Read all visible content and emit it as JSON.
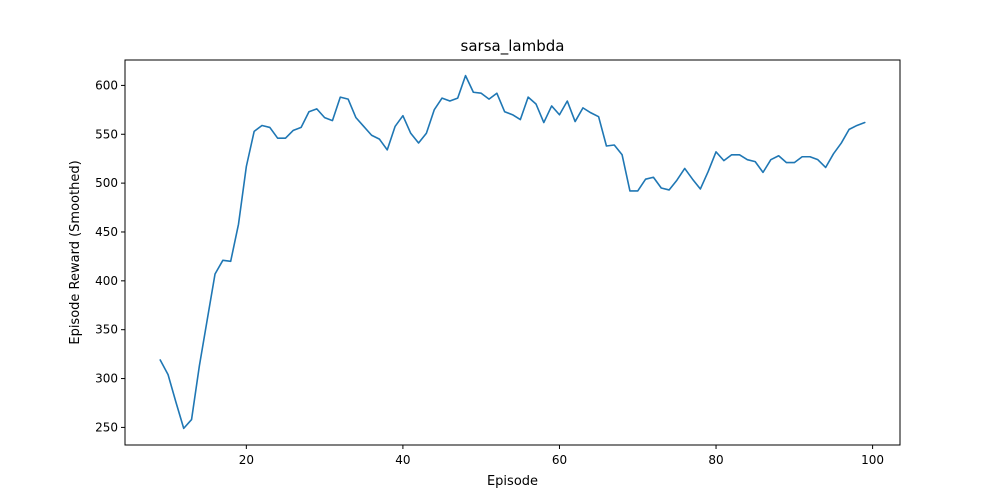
{
  "chart_data": {
    "type": "line",
    "title": "sarsa_lambda",
    "xlabel": "Episode",
    "ylabel": "Episode Reward (Smoothed)",
    "xlim": [
      4.5,
      103.5
    ],
    "ylim": [
      232,
      626
    ],
    "xticks": [
      20,
      40,
      60,
      80,
      100
    ],
    "yticks": [
      250,
      300,
      350,
      400,
      450,
      500,
      550,
      600
    ],
    "grid": false,
    "line_color": "#1f77b4",
    "series": [
      {
        "x": [
          9,
          10,
          11,
          12,
          13,
          14,
          15,
          16,
          17,
          18,
          19,
          20,
          21,
          22,
          23,
          24,
          25,
          26,
          27,
          28,
          29,
          30,
          31,
          32,
          33,
          34,
          35,
          36,
          37,
          38,
          39,
          40,
          41,
          42,
          43,
          44,
          45,
          46,
          47,
          48,
          49,
          50,
          51,
          52,
          53,
          54,
          55,
          56,
          57,
          58,
          59,
          60,
          61,
          62,
          63,
          64,
          65,
          66,
          67,
          68,
          69,
          70,
          71,
          72,
          73,
          74,
          75,
          76,
          77,
          78,
          79,
          80,
          81,
          82,
          83,
          84,
          85,
          86,
          87,
          88,
          89,
          90,
          91,
          92,
          93,
          94,
          95,
          96,
          97,
          98,
          99
        ],
        "values": [
          319,
          304,
          276,
          249,
          258,
          313,
          360,
          407,
          421,
          420,
          458,
          517,
          553,
          559,
          557,
          546,
          546,
          554,
          557,
          573,
          576,
          567,
          564,
          588,
          586,
          567,
          558,
          549,
          545,
          534,
          558,
          569,
          551,
          541,
          551,
          575,
          587,
          584,
          587,
          610,
          593,
          592,
          586,
          592,
          573,
          570,
          565,
          588,
          581,
          562,
          579,
          570,
          584,
          563,
          577,
          572,
          568,
          538,
          539,
          529,
          492,
          492,
          504,
          506,
          495,
          493,
          503,
          515,
          504,
          494,
          512,
          532,
          523,
          529,
          529,
          524,
          522,
          511,
          524,
          528,
          521,
          521,
          527,
          527,
          524,
          516,
          530,
          541,
          555,
          559,
          562
        ]
      }
    ]
  }
}
